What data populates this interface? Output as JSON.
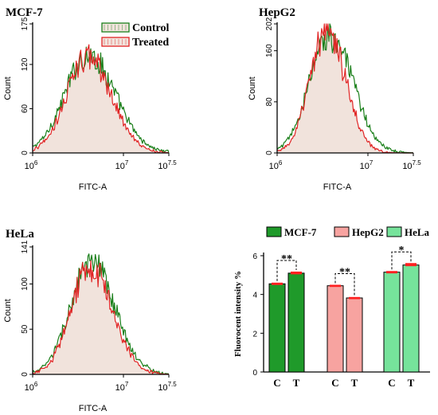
{
  "colors": {
    "control": "#1a7f1a",
    "treated": "#e02424",
    "fill": "#f1e3dc",
    "mcf7_bar": "#1f9a2a",
    "hepg2_bar": "#f7a3a0",
    "hela_bar": "#76e39b",
    "error": "#ff2020"
  },
  "chart_data": [
    {
      "type": "area",
      "panel": "MCF-7",
      "title": "MCF-7",
      "xlabel": "FITC-A",
      "ylabel": "Count",
      "x_scale": "log",
      "xlim": [
        1000000,
        31622777
      ],
      "ylim": [
        0,
        175
      ],
      "x_ticks": [
        {
          "base": "10",
          "exp": "6"
        },
        {
          "base": "10",
          "exp": "7"
        },
        {
          "base": "10",
          "exp": "7.5"
        }
      ],
      "y_ticks": [
        "0",
        "60",
        "120",
        "175"
      ],
      "legend": {
        "position": "top-right",
        "entries": [
          "Control",
          "Treated"
        ]
      },
      "series": [
        {
          "name": "Control",
          "peak_x": 4100000,
          "peak_y": 133,
          "sigma_decades": 0.28
        },
        {
          "name": "Treated",
          "peak_x": 4000000,
          "peak_y": 130,
          "sigma_decades": 0.25
        }
      ]
    },
    {
      "type": "area",
      "panel": "HepG2",
      "title": "HepG2",
      "xlabel": "FITC-A",
      "ylabel": "Count",
      "x_scale": "log",
      "xlim": [
        1000000,
        31622777
      ],
      "ylim": [
        0,
        202
      ],
      "x_ticks": [
        {
          "base": "10",
          "exp": "6"
        },
        {
          "base": "10",
          "exp": "7"
        },
        {
          "base": "10",
          "exp": "7.5"
        }
      ],
      "y_ticks": [
        "0",
        "80",
        "160",
        "202"
      ],
      "series": [
        {
          "name": "Control",
          "peak_x": 3800000,
          "peak_y": 185,
          "sigma_decades": 0.24
        },
        {
          "name": "Treated",
          "peak_x": 3500000,
          "peak_y": 190,
          "sigma_decades": 0.2
        }
      ]
    },
    {
      "type": "area",
      "panel": "HeLa",
      "title": "HeLa",
      "xlabel": "FITC-A",
      "ylabel": "Count",
      "x_scale": "log",
      "xlim": [
        1000000,
        31622777
      ],
      "ylim": [
        0,
        141
      ],
      "x_ticks": [
        {
          "base": "10",
          "exp": "6"
        },
        {
          "base": "10",
          "exp": "7"
        },
        {
          "base": "10",
          "exp": "7.5"
        }
      ],
      "y_ticks": [
        "0",
        "50",
        "100",
        "141"
      ],
      "series": [
        {
          "name": "Control",
          "peak_x": 4400000,
          "peak_y": 122,
          "sigma_decades": 0.25
        },
        {
          "name": "Treated",
          "peak_x": 4300000,
          "peak_y": 120,
          "sigma_decades": 0.23
        }
      ]
    },
    {
      "type": "bar",
      "panel": "summary",
      "ylabel": "Fluorocent intensity %",
      "ylim": [
        0,
        6
      ],
      "y_ticks": [
        "0",
        "2",
        "4",
        "6"
      ],
      "legend": {
        "position": "top",
        "entries": [
          "MCF-7",
          "HepG2",
          "HeLa"
        ]
      },
      "groups": [
        {
          "name": "MCF-7",
          "categories": [
            "C",
            "T"
          ],
          "values": [
            4.55,
            5.1
          ],
          "errors": [
            0.06,
            0.08
          ],
          "significance": "**"
        },
        {
          "name": "HepG2",
          "categories": [
            "C",
            "T"
          ],
          "values": [
            4.45,
            3.82
          ],
          "errors": [
            0.05,
            0.05
          ],
          "significance": "**"
        },
        {
          "name": "HeLa",
          "categories": [
            "C",
            "T"
          ],
          "values": [
            5.15,
            5.52
          ],
          "errors": [
            0.06,
            0.1
          ],
          "significance": "*"
        }
      ]
    }
  ]
}
